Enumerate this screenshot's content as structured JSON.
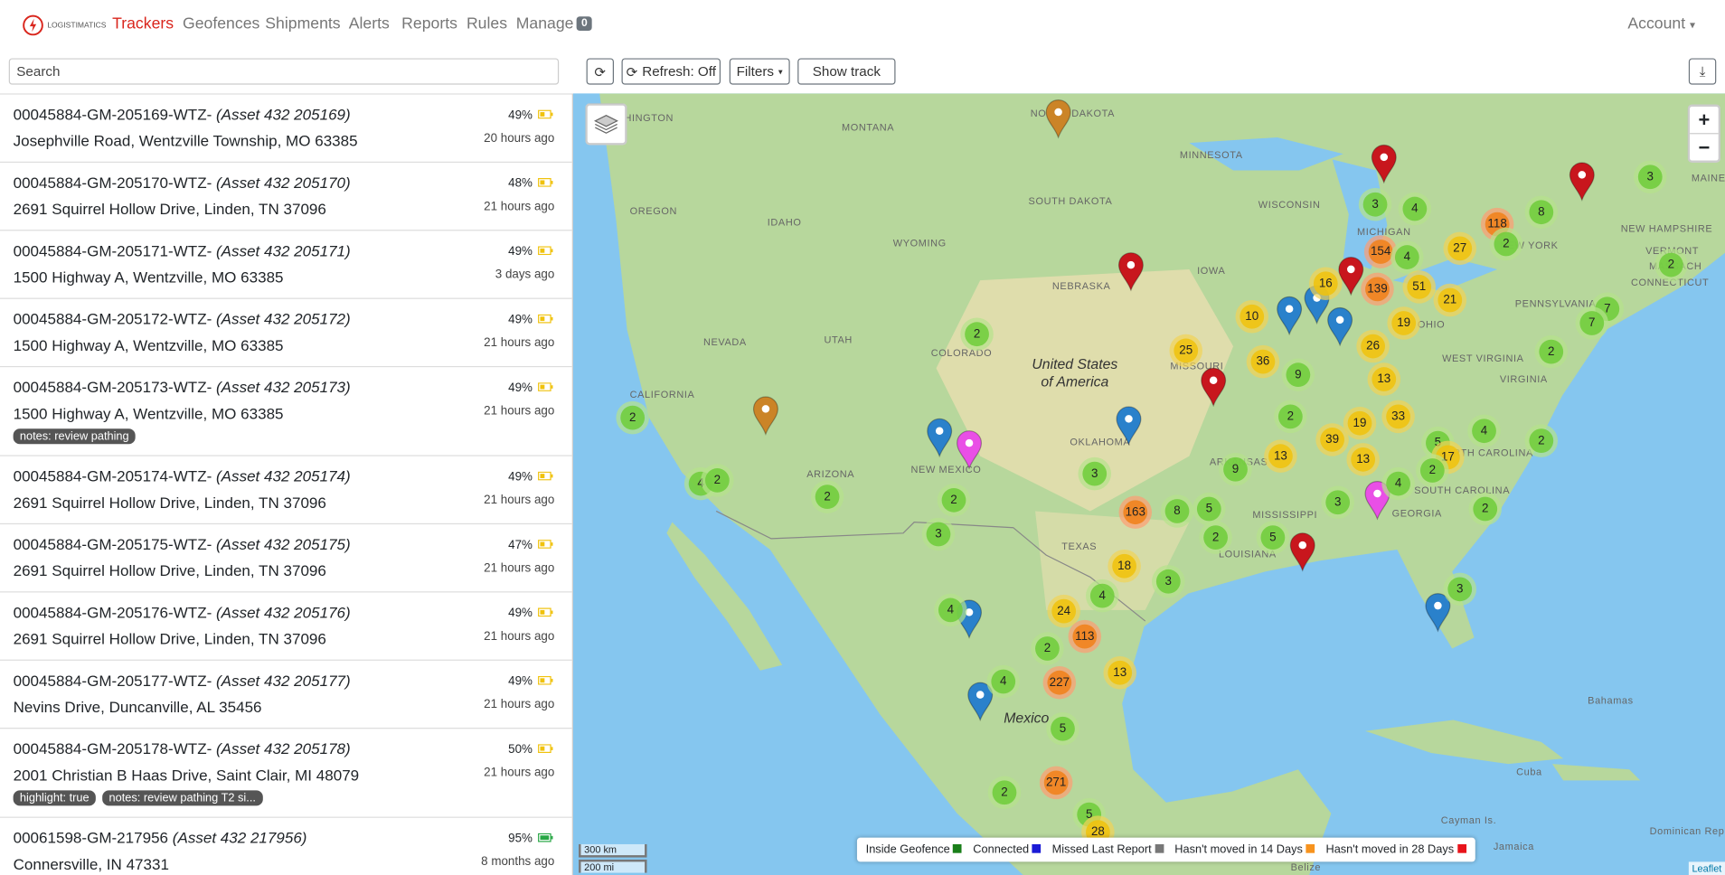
{
  "header": {
    "brand": "LOGISTIMATICS",
    "nav": [
      "Trackers",
      "Geofences",
      "Shipments",
      "Alerts",
      "Reports",
      "Rules",
      "Manage"
    ],
    "manage_badge": "0",
    "account": "Account"
  },
  "toolbar": {
    "search_placeholder": "Search",
    "refresh": "Refresh: Off",
    "filters": "Filters",
    "show_track": "Show track"
  },
  "trackers": [
    {
      "id": "00045884-GM-205169-WTZ-",
      "asset": "(Asset 432 205169)",
      "address": "Josephville Road, Wentzville Township, MO 63385",
      "battery": "49%",
      "battery_color": "#f0c20c",
      "time": "20 hours ago",
      "tags": []
    },
    {
      "id": "00045884-GM-205170-WTZ-",
      "asset": "(Asset 432 205170)",
      "address": "2691 Squirrel Hollow Drive, Linden, TN 37096",
      "battery": "48%",
      "battery_color": "#f0c20c",
      "time": "21 hours ago",
      "tags": []
    },
    {
      "id": "00045884-GM-205171-WTZ-",
      "asset": "(Asset 432 205171)",
      "address": "1500 Highway A, Wentzville, MO 63385",
      "battery": "49%",
      "battery_color": "#f0c20c",
      "time": "3 days ago",
      "tags": []
    },
    {
      "id": "00045884-GM-205172-WTZ-",
      "asset": "(Asset 432 205172)",
      "address": "1500 Highway A, Wentzville, MO 63385",
      "battery": "49%",
      "battery_color": "#f0c20c",
      "time": "21 hours ago",
      "tags": []
    },
    {
      "id": "00045884-GM-205173-WTZ-",
      "asset": "(Asset 432 205173)",
      "address": "1500 Highway A, Wentzville, MO 63385",
      "battery": "49%",
      "battery_color": "#f0c20c",
      "time": "21 hours ago",
      "tags": [
        "notes: review pathing"
      ]
    },
    {
      "id": "00045884-GM-205174-WTZ-",
      "asset": "(Asset 432 205174)",
      "address": "2691 Squirrel Hollow Drive, Linden, TN 37096",
      "battery": "49%",
      "battery_color": "#f0c20c",
      "time": "21 hours ago",
      "tags": []
    },
    {
      "id": "00045884-GM-205175-WTZ-",
      "asset": "(Asset 432 205175)",
      "address": "2691 Squirrel Hollow Drive, Linden, TN 37096",
      "battery": "47%",
      "battery_color": "#f0c20c",
      "time": "21 hours ago",
      "tags": []
    },
    {
      "id": "00045884-GM-205176-WTZ-",
      "asset": "(Asset 432 205176)",
      "address": "2691 Squirrel Hollow Drive, Linden, TN 37096",
      "battery": "49%",
      "battery_color": "#f0c20c",
      "time": "21 hours ago",
      "tags": []
    },
    {
      "id": "00045884-GM-205177-WTZ-",
      "asset": "(Asset 432 205177)",
      "address": "Nevins Drive, Duncanville, AL 35456",
      "battery": "49%",
      "battery_color": "#f0c20c",
      "time": "21 hours ago",
      "tags": []
    },
    {
      "id": "00045884-GM-205178-WTZ-",
      "asset": "(Asset 432 205178)",
      "address": "2001 Christian B Haas Drive, Saint Clair, MI 48079",
      "battery": "50%",
      "battery_color": "#f0c20c",
      "time": "21 hours ago",
      "tags": [
        "highlight: true",
        "notes: review pathing T2 si..."
      ]
    },
    {
      "id": "00061598-GM-217956",
      "asset": "(Asset 432 217956)",
      "address": "Connersville, IN 47331",
      "battery": "95%",
      "battery_color": "#28a745",
      "time": "8 months ago",
      "tags": []
    }
  ],
  "map": {
    "labels": [
      "WASHINGTON",
      "MONTANA",
      "NORTH DAKOTA",
      "MINNESOTA",
      "OREGON",
      "IDAHO",
      "WYOMING",
      "SOUTH DAKOTA",
      "WISCONSIN",
      "MICHIGAN",
      "NEBRASKA",
      "IOWA",
      "NEVADA",
      "UTAH",
      "COLORADO",
      "CALIFORNIA",
      "United States",
      "of America",
      "MISSOURI",
      "OHIO",
      "PENNSYLVANIA",
      "NEW YORK",
      "VERMONT",
      "NEW HAMPSHIRE",
      "MASSACH",
      "CONNECTICUT",
      "WEST VIRGINIA",
      "VIRGINIA",
      "ARIZONA",
      "NEW MEXICO",
      "OKLAHOMA",
      "ARKANSAS",
      "NORTH CAROLINA",
      "SOUTH CAROLINA",
      "TEXAS",
      "MISSISSIPPI",
      "GEORGIA",
      "LOUISIANA",
      "Mexico",
      "Bahamas",
      "Cuba",
      "Cayman Is.",
      "Jamaica",
      "Dominican Rep.",
      "Belize",
      "MAINE"
    ],
    "clusters": [
      "3",
      "8",
      "118",
      "2",
      "27",
      "154",
      "4",
      "3",
      "4",
      "2",
      "16",
      "139",
      "51",
      "21",
      "10",
      "19",
      "7",
      "7",
      "2",
      "25",
      "36",
      "26",
      "9",
      "13",
      "2",
      "2",
      "2",
      "19",
      "33",
      "39",
      "4",
      "2",
      "5",
      "17",
      "13",
      "13",
      "9",
      "3",
      "4",
      "2",
      "2",
      "4",
      "2",
      "2",
      "163",
      "8",
      "5",
      "3",
      "2",
      "3",
      "2",
      "5",
      "18",
      "3",
      "4",
      "3",
      "4",
      "24",
      "113",
      "2",
      "13",
      "4",
      "227",
      "5",
      "2",
      "271",
      "5",
      "28"
    ],
    "zoom_in": "+",
    "zoom_out": "−",
    "scale_km": "300 km",
    "scale_mi": "200 mi",
    "attribution": "Leaflet",
    "legend": [
      {
        "label": "Inside Geofence",
        "color": "#1a7f1a"
      },
      {
        "label": "Connected",
        "color": "#1b1bd6"
      },
      {
        "label": "Missed Last Report",
        "color": "#777777"
      },
      {
        "label": "Hasn't moved in 14 Days",
        "color": "#f7931e"
      },
      {
        "label": "Hasn't moved in 28 Days",
        "color": "#e8141b"
      }
    ]
  }
}
